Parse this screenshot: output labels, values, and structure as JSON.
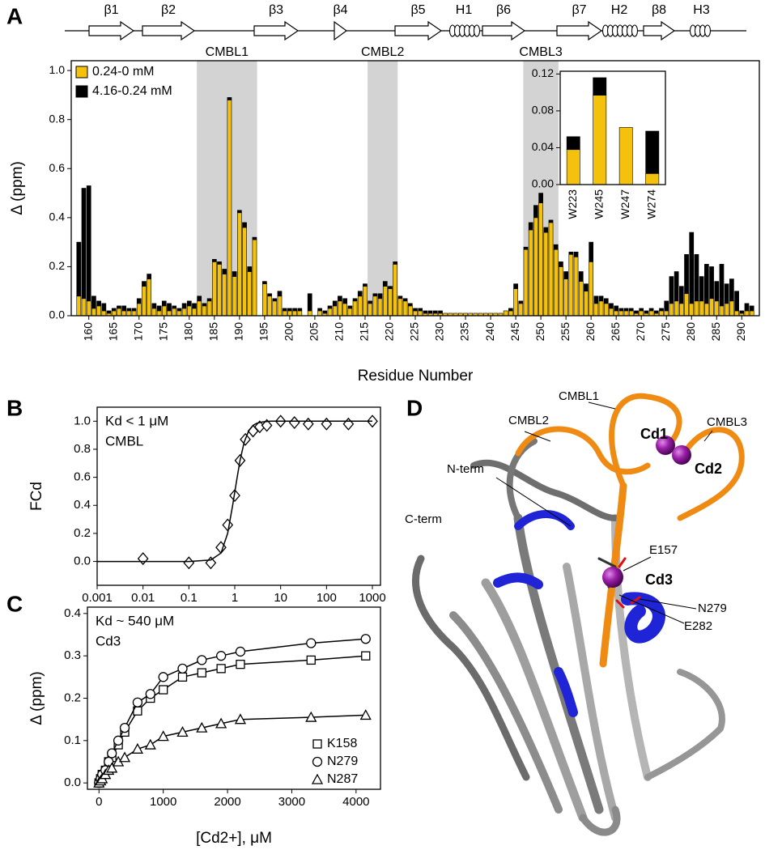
{
  "panels": [
    "A",
    "B",
    "C",
    "D"
  ],
  "secondary_structure": [
    "β1",
    "β2",
    "β3",
    "β4",
    "β5",
    "H1",
    "β6",
    "β7",
    "H2",
    "β8",
    "H3"
  ],
  "chart_data": [
    {
      "type": "bar",
      "stacked": true,
      "x_label": "Residue Number",
      "y_label": "Δ (ppm)",
      "legend": "upper left",
      "highlight_regions": [
        {
          "label": "CMBL1",
          "start": 181.5,
          "end": 193.5
        },
        {
          "label": "CMBL2",
          "start": 215.5,
          "end": 221.5
        },
        {
          "label": "CMBL3",
          "start": 246.5,
          "end": 253.5
        }
      ],
      "x": [
        158,
        159,
        160,
        161,
        162,
        163,
        164,
        165,
        166,
        167,
        168,
        169,
        170,
        171,
        172,
        173,
        174,
        175,
        176,
        177,
        178,
        179,
        180,
        181,
        182,
        183,
        184,
        185,
        186,
        187,
        188,
        189,
        190,
        191,
        192,
        193,
        194,
        195,
        196,
        197,
        198,
        199,
        200,
        201,
        202,
        203,
        204,
        205,
        206,
        207,
        208,
        209,
        210,
        211,
        212,
        213,
        214,
        215,
        216,
        217,
        218,
        219,
        220,
        221,
        222,
        223,
        224,
        225,
        226,
        227,
        228,
        229,
        230,
        231,
        232,
        233,
        234,
        235,
        236,
        237,
        238,
        239,
        240,
        241,
        242,
        243,
        244,
        245,
        246,
        247,
        248,
        249,
        250,
        251,
        252,
        253,
        254,
        255,
        256,
        257,
        258,
        259,
        260,
        261,
        262,
        263,
        264,
        265,
        266,
        267,
        268,
        269,
        270,
        271,
        272,
        273,
        274,
        275,
        276,
        277,
        278,
        279,
        280,
        281,
        282,
        283,
        284,
        285,
        286,
        287,
        288,
        289,
        290,
        291,
        292
      ],
      "series": [
        {
          "name": "0.24-0 mM",
          "color": "#f4c20d",
          "values": [
            0.08,
            0.07,
            0.06,
            0.03,
            0.04,
            0.02,
            0.01,
            0.02,
            0.03,
            0.02,
            0.02,
            0.02,
            0.05,
            0.12,
            0.15,
            0.03,
            0.02,
            0.04,
            0.02,
            0.03,
            0.02,
            0.03,
            0.04,
            0.03,
            0.06,
            0.04,
            0.06,
            0.22,
            0.21,
            0.17,
            0.88,
            0.16,
            0.42,
            0.36,
            0.18,
            0.31,
            null,
            0.13,
            0.08,
            0.06,
            0.08,
            0.02,
            0.02,
            0.02,
            0.02,
            null,
            0.02,
            null,
            0.02,
            0.01,
            0.03,
            0.04,
            0.06,
            0.05,
            0.03,
            0.06,
            0.08,
            0.12,
            0.05,
            0.08,
            0.07,
            0.12,
            0.11,
            0.21,
            0.07,
            0.06,
            0.04,
            0.02,
            0.02,
            0.01,
            0.01,
            0.01,
            0.01,
            0.01,
            0.01,
            0.01,
            0.01,
            0.01,
            0.01,
            0.01,
            0.01,
            0.01,
            0.01,
            0.01,
            0.01,
            0.02,
            0.02,
            0.11,
            0.05,
            0.27,
            0.35,
            0.4,
            0.46,
            0.34,
            0.38,
            0.27,
            0.2,
            0.15,
            0.25,
            0.24,
            0.14,
            0.1,
            0.22,
            0.05,
            0.06,
            0.05,
            0.03,
            0.02,
            0.02,
            0.02,
            0.02,
            0.01,
            0.02,
            0.01,
            0.02,
            0.01,
            0.02,
            0.02,
            0.05,
            0.06,
            0.05,
            0.09,
            0.05,
            0.06,
            0.06,
            0.05,
            0.07,
            0.06,
            0.04,
            0.05,
            0.06,
            0.02,
            0.01,
            0.02,
            0.02
          ]
        },
        {
          "name": "4.16-0.24 mM",
          "color": "#000000",
          "values": [
            0.22,
            0.45,
            0.47,
            0.05,
            0.02,
            0.03,
            0.01,
            0.01,
            0.01,
            0.02,
            0.01,
            0.01,
            0.02,
            0.02,
            0.02,
            0.02,
            0.02,
            0.02,
            0.03,
            0.01,
            0.01,
            0.02,
            0.02,
            0.02,
            0.02,
            0.01,
            0.01,
            0.01,
            0.01,
            0.02,
            0.01,
            0.02,
            0.01,
            0.02,
            0.02,
            0.01,
            null,
            0.01,
            0.01,
            0.01,
            0.02,
            0.01,
            0.01,
            0.01,
            0.01,
            null,
            0.07,
            null,
            0.01,
            0.01,
            0.01,
            0.02,
            0.02,
            0.02,
            0.01,
            0.01,
            0.02,
            0.01,
            0.01,
            0.01,
            0.02,
            0.02,
            0.01,
            0.01,
            0.01,
            0.01,
            0.01,
            0.01,
            0.01,
            0.01,
            0.01,
            0.01,
            0.01,
            0,
            0,
            0,
            0,
            0,
            0,
            0,
            0,
            0,
            0,
            0,
            0,
            0,
            0.01,
            0.02,
            0.01,
            0.01,
            0.03,
            0.05,
            0.04,
            0.02,
            0.01,
            0.02,
            0.02,
            0.03,
            0.01,
            0.02,
            0.04,
            0.03,
            0.08,
            0.03,
            0.02,
            0.02,
            0.02,
            0.02,
            0.01,
            0.01,
            0.01,
            0.01,
            0.01,
            0.01,
            0.01,
            0.01,
            0.01,
            0.04,
            0.11,
            0.12,
            0.07,
            0.16,
            0.29,
            0.19,
            0.1,
            0.16,
            0.13,
            0.08,
            0.17,
            0.08,
            0.09,
            0.08,
            0.01,
            0.03,
            0.02
          ]
        }
      ],
      "xlim": [
        156.5,
        293.5
      ],
      "xticks": [
        160,
        165,
        170,
        175,
        180,
        185,
        190,
        195,
        200,
        205,
        210,
        215,
        220,
        225,
        230,
        235,
        240,
        245,
        250,
        255,
        260,
        265,
        270,
        275,
        280,
        285,
        290
      ],
      "ylim": [
        0,
        1.04
      ],
      "yticks": [
        {
          "value": 0,
          "label": "0.0"
        },
        0.2,
        0.4,
        0.6,
        0.8,
        {
          "value": 1,
          "label": "1.0"
        }
      ]
    },
    {
      "type": "bar",
      "stacked": true,
      "categories": [
        "W223",
        "W245",
        "W247",
        "W274"
      ],
      "series": [
        {
          "color": "#f4c20d",
          "values": [
            0.038,
            0.097,
            0.062,
            0.012
          ]
        },
        {
          "color": "#000000",
          "values": [
            0.014,
            0.019,
            0,
            0.046
          ]
        }
      ],
      "ylim": [
        0,
        0.123
      ],
      "yticks": [
        {
          "value": 0,
          "label": "0.00"
        },
        0.04,
        0.08,
        0.12
      ]
    },
    {
      "type": "scatter",
      "xscale": "log",
      "y_label": "FCd",
      "annotations": [
        "Kd < 1 μM",
        "CMBL"
      ],
      "series": [
        {
          "marker": "diamond",
          "x": [
            0.01,
            0.1,
            0.3,
            0.5,
            0.7,
            1,
            1.3,
            1.7,
            2.5,
            3.5,
            5,
            10,
            20,
            40,
            100,
            300,
            1000
          ],
          "values": [
            0.02,
            -0.01,
            -0.01,
            0.1,
            0.26,
            0.47,
            0.72,
            0.87,
            0.93,
            0.96,
            0.97,
            1.0,
            0.99,
            0.98,
            0.98,
            0.98,
            1.0
          ]
        },
        {
          "marker": "none",
          "line": true,
          "x": [
            0.001,
            0.01,
            0.1,
            0.3,
            0.5,
            0.7,
            0.9,
            1.1,
            1.3,
            1.6,
            2,
            2.5,
            3,
            4,
            6,
            10,
            100,
            1000
          ],
          "values": [
            0,
            0,
            0,
            0.01,
            0.06,
            0.2,
            0.4,
            0.58,
            0.72,
            0.85,
            0.93,
            0.97,
            0.985,
            0.995,
            1,
            1,
            1,
            1
          ]
        }
      ],
      "xlim": [
        0.001,
        1500
      ],
      "xticks": [
        0.001,
        0.01,
        0.1,
        1,
        10,
        100,
        1000
      ],
      "ylim": [
        -0.17,
        1.1
      ],
      "yticks": [
        {
          "value": 0,
          "label": "0.0"
        },
        0.2,
        0.4,
        0.6,
        0.8,
        {
          "value": 1,
          "label": "1.0"
        }
      ]
    },
    {
      "type": "scatter",
      "x_label": "[Cd2+], μM",
      "y_label": "Δ (ppm)",
      "annotations": [
        "Kd ~ 540 μM",
        "Cd3"
      ],
      "legend": "lower right",
      "x": [
        0,
        25,
        50,
        100,
        150,
        200,
        300,
        400,
        600,
        800,
        1000,
        1300,
        1600,
        1900,
        2200,
        3300,
        4150
      ],
      "series": [
        {
          "name": "K158",
          "marker": "square",
          "line": true,
          "values": [
            0,
            0.01,
            0.02,
            0.03,
            0.05,
            0.06,
            0.09,
            0.12,
            0.17,
            0.2,
            0.22,
            0.25,
            0.26,
            0.27,
            0.28,
            0.29,
            0.3
          ]
        },
        {
          "name": "N279",
          "marker": "circle",
          "line": true,
          "values": [
            0,
            0.01,
            0.02,
            0.03,
            0.05,
            0.07,
            0.1,
            0.13,
            0.19,
            0.21,
            0.25,
            0.27,
            0.29,
            0.3,
            0.31,
            0.33,
            0.34
          ]
        },
        {
          "name": "N287",
          "marker": "triangle",
          "line": true,
          "values": [
            0,
            0.005,
            0.01,
            0.02,
            0.03,
            0.035,
            0.05,
            0.06,
            0.08,
            0.09,
            0.11,
            0.12,
            0.13,
            0.14,
            0.15,
            0.155,
            0.16
          ]
        }
      ],
      "xlim": [
        -180,
        4380
      ],
      "xticks": [
        0,
        1000,
        2000,
        3000,
        4000
      ],
      "ylim": [
        -0.015,
        0.415
      ],
      "yticks": [
        {
          "value": 0,
          "label": "0.0"
        },
        0.1,
        0.2,
        0.3,
        0.4
      ]
    }
  ],
  "panel_d": {
    "labels": [
      "CMBL1",
      "CMBL2",
      "CMBL3",
      "Cd1",
      "Cd2",
      "N-term",
      "C-term",
      "E157",
      "Cd3",
      "N279",
      "E282"
    ]
  }
}
